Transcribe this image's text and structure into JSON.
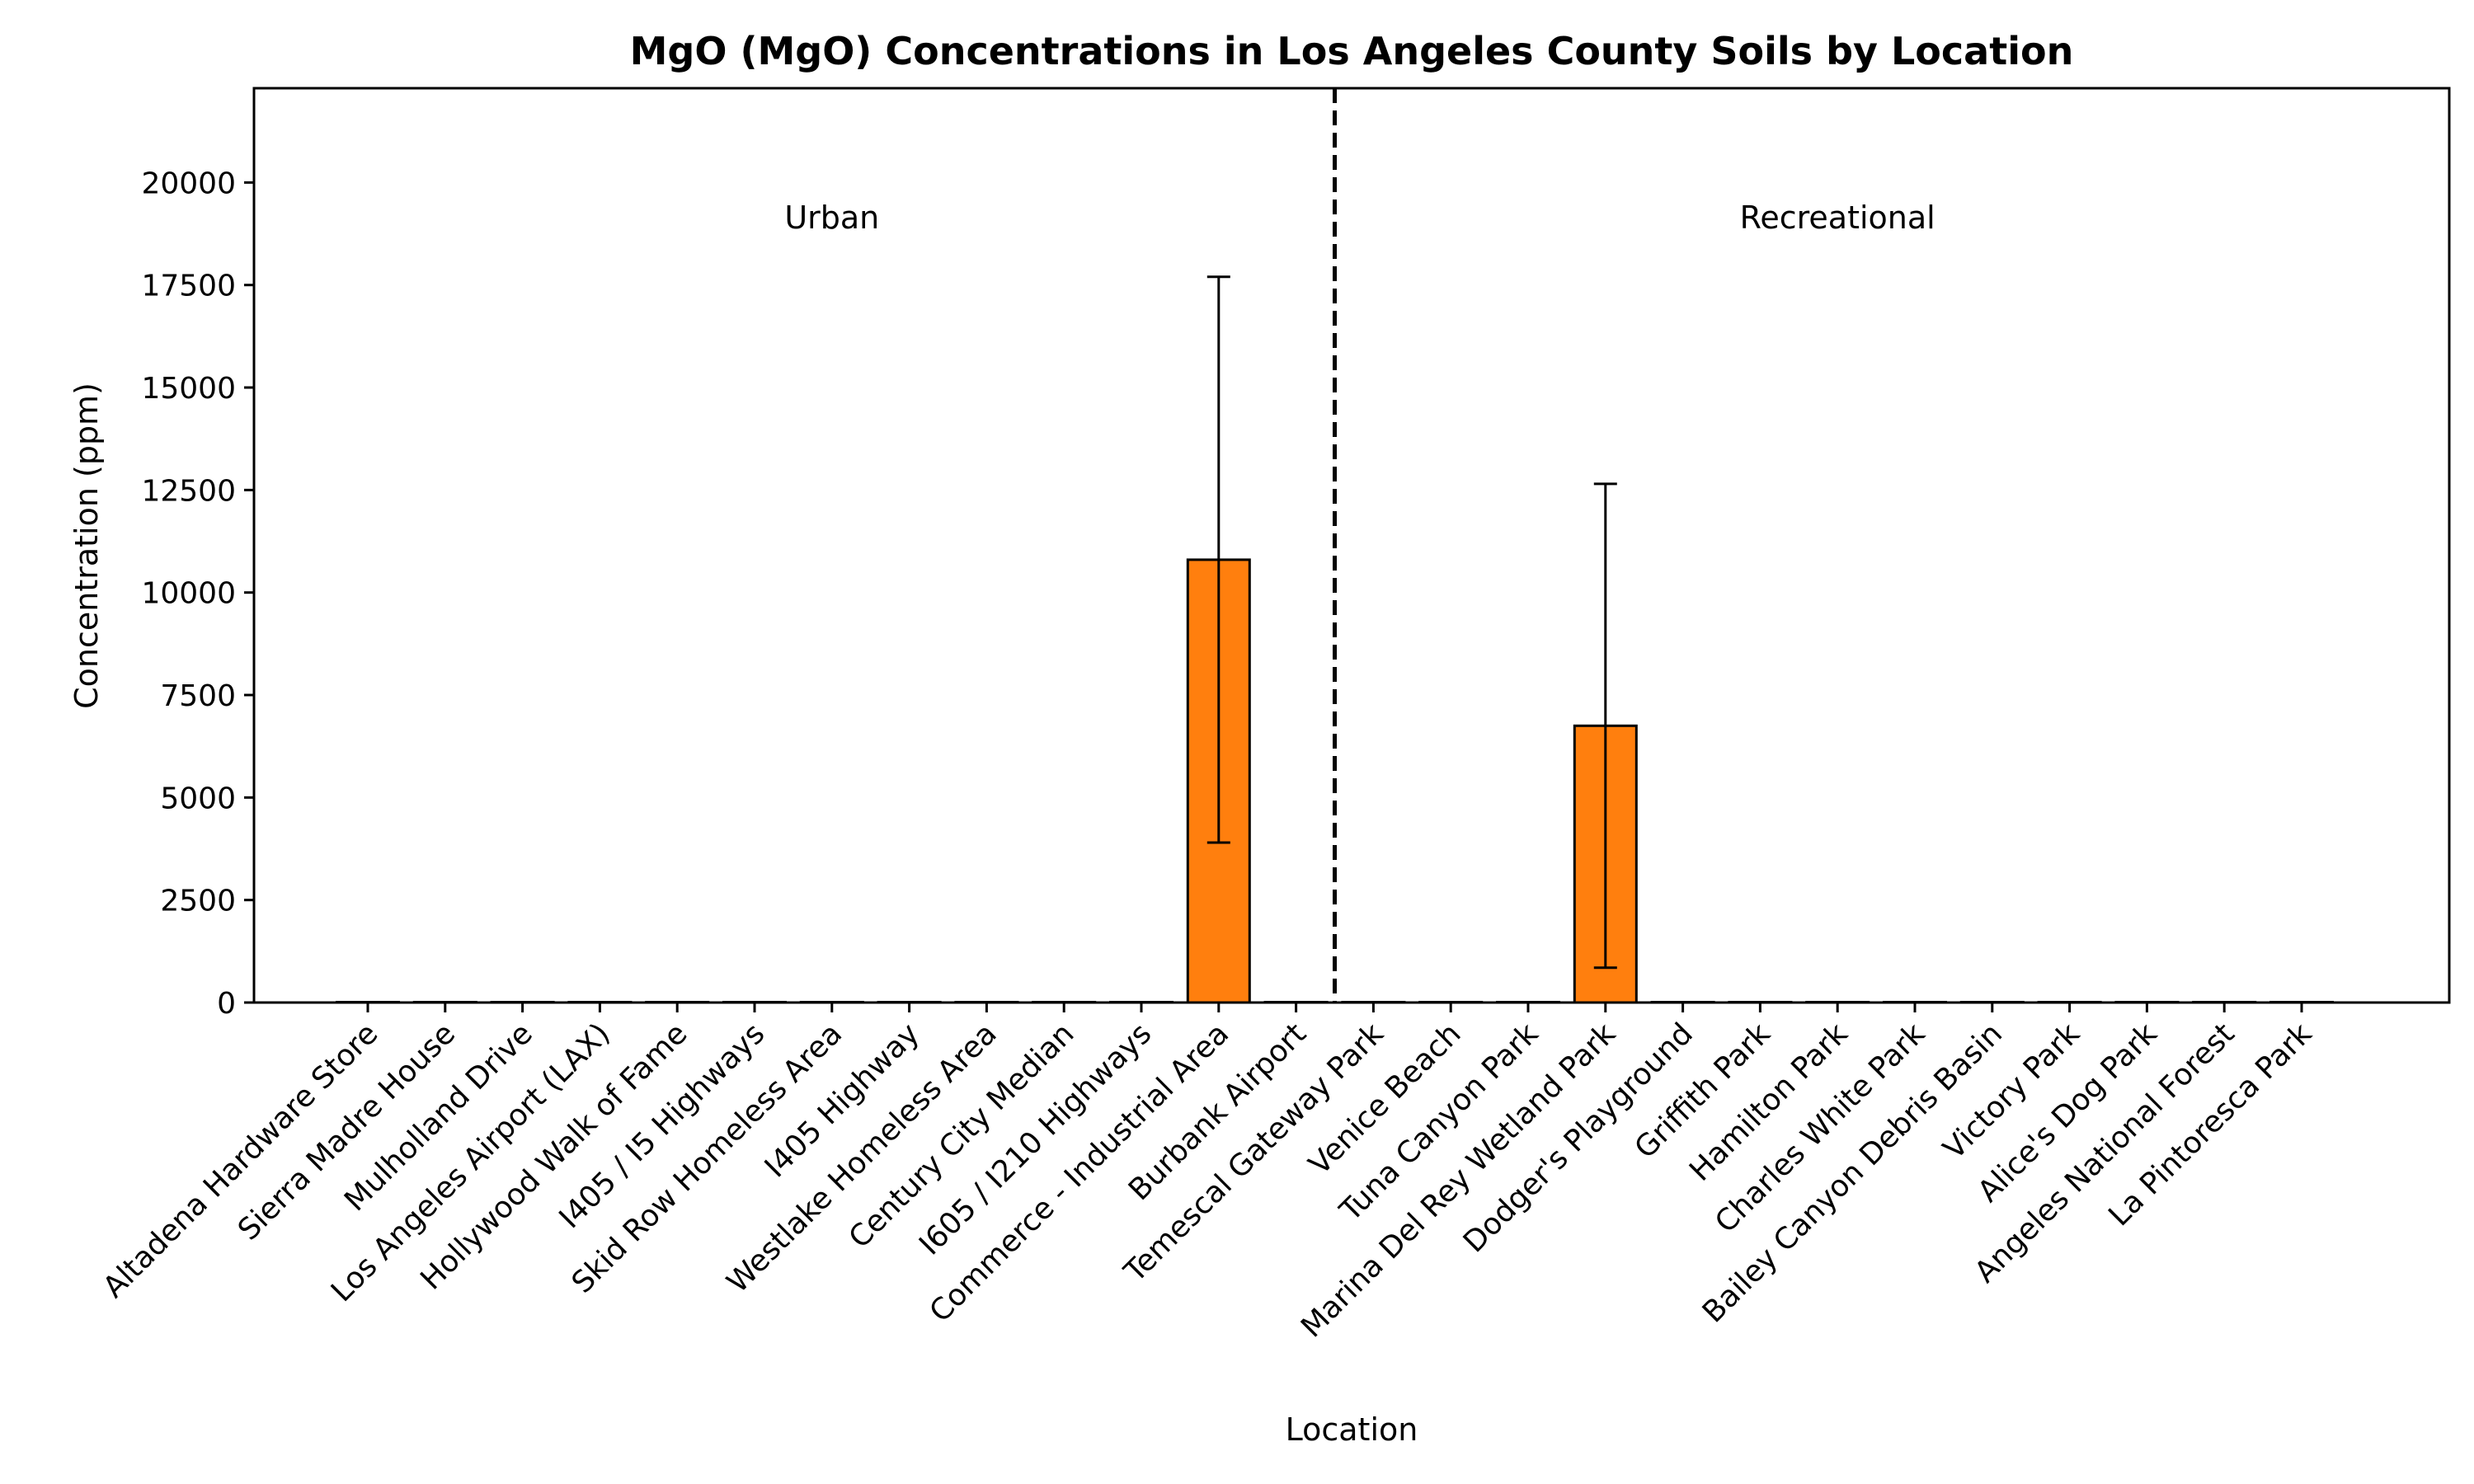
{
  "chart_data": {
    "type": "bar",
    "title": "MgO (MgO) Concentrations in Los Angeles County Soils by Location",
    "xlabel": "Location",
    "ylabel": "Concentration (ppm)",
    "ylim": [
      0,
      22300
    ],
    "yticks": [
      0,
      2500,
      5000,
      7500,
      10000,
      12500,
      15000,
      17500,
      20000
    ],
    "categories": [
      "Altadena Hardware Store",
      "Sierra Madre House",
      "Mulholland Drive",
      "Los Angeles Airport (LAX)",
      "Hollywood Walk of Fame",
      "I405 / I5 Highways",
      "Skid Row Homeless Area",
      "I405 Highway",
      "Westlake Homeless Area",
      "Century City Median",
      "I605 / I210 Highways",
      "Commerce - Industrial Area",
      "Burbank Airport",
      "Temescal Gateway Park",
      "Venice Beach",
      "Tuna Canyon Park",
      "Marina Del Rey Wetland Park",
      "Dodger's Playground",
      "Griffith Park",
      "Hamilton Park",
      "Charles White Park",
      "Bailey Canyon Debris Basin",
      "Victory Park",
      "Alice's Dog Park",
      "Angeles National Forest",
      "La Pintoresca Park"
    ],
    "values": [
      0,
      0,
      0,
      0,
      0,
      0,
      0,
      0,
      0,
      0,
      0,
      10800,
      0,
      0,
      0,
      0,
      6750,
      0,
      0,
      0,
      0,
      0,
      0,
      0,
      0,
      0
    ],
    "error_low": [
      0,
      0,
      0,
      0,
      0,
      0,
      0,
      0,
      0,
      0,
      0,
      3900,
      0,
      0,
      0,
      0,
      850,
      0,
      0,
      0,
      0,
      0,
      0,
      0,
      0,
      0
    ],
    "error_high": [
      0,
      0,
      0,
      0,
      0,
      0,
      0,
      0,
      0,
      0,
      0,
      17700,
      0,
      0,
      0,
      0,
      12650,
      0,
      0,
      0,
      0,
      0,
      0,
      0,
      0,
      0
    ],
    "bar_color": "#ff7f0e",
    "grid": false,
    "legend": "none",
    "groups": [
      {
        "label": "Urban",
        "start": 0,
        "end": 12
      },
      {
        "label": "Recreational",
        "start": 13,
        "end": 25
      }
    ],
    "divider_after_index": 12
  }
}
